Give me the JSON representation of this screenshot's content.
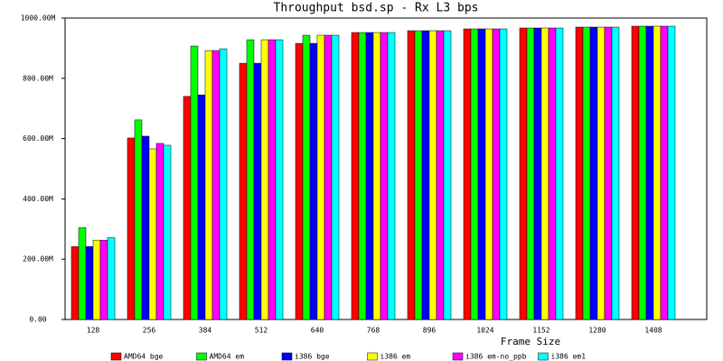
{
  "chart_data": {
    "type": "bar",
    "title": "Throughput bsd.sp - Rx L3 bps",
    "xlabel": "Frame Size",
    "categories": [
      "128",
      "256",
      "384",
      "512",
      "640",
      "768",
      "896",
      "1024",
      "1152",
      "1280",
      "1408"
    ],
    "series": [
      {
        "name": "AMD64 bge",
        "color": "#ff0000",
        "values": [
          242000000,
          602000000,
          740000000,
          850000000,
          916000000,
          952000000,
          958000000,
          964000000,
          967000000,
          970000000,
          973000000
        ]
      },
      {
        "name": "AMD64 em",
        "color": "#00ff00",
        "values": [
          305000000,
          662000000,
          907000000,
          928000000,
          943000000,
          952000000,
          958000000,
          964000000,
          967000000,
          970000000,
          973000000
        ]
      },
      {
        "name": "i386 bge",
        "color": "#0000ff",
        "values": [
          242000000,
          608000000,
          745000000,
          850000000,
          916000000,
          952000000,
          958000000,
          964000000,
          967000000,
          970000000,
          973000000
        ]
      },
      {
        "name": "i386 em",
        "color": "#ffff00",
        "values": [
          263000000,
          566000000,
          892000000,
          928000000,
          943000000,
          952000000,
          958000000,
          964000000,
          967000000,
          970000000,
          973000000
        ]
      },
      {
        "name": "i386 em-no_ppb",
        "color": "#ff00ff",
        "values": [
          263000000,
          584000000,
          892000000,
          928000000,
          943000000,
          952000000,
          958000000,
          964000000,
          967000000,
          970000000,
          973000000
        ]
      },
      {
        "name": "i386 em1",
        "color": "#00ffff",
        "values": [
          272000000,
          578000000,
          898000000,
          928000000,
          943000000,
          952000000,
          958000000,
          964000000,
          967000000,
          970000000,
          973000000
        ]
      }
    ],
    "ylim": [
      0,
      1000000000
    ],
    "yticks": [
      {
        "value": 0,
        "label": "0.00"
      },
      {
        "value": 200000000,
        "label": "200.00M"
      },
      {
        "value": 400000000,
        "label": "400.00M"
      },
      {
        "value": 600000000,
        "label": "600.00M"
      },
      {
        "value": 800000000,
        "label": "800.00M"
      },
      {
        "value": 1000000000,
        "label": "1000.00M"
      }
    ]
  }
}
